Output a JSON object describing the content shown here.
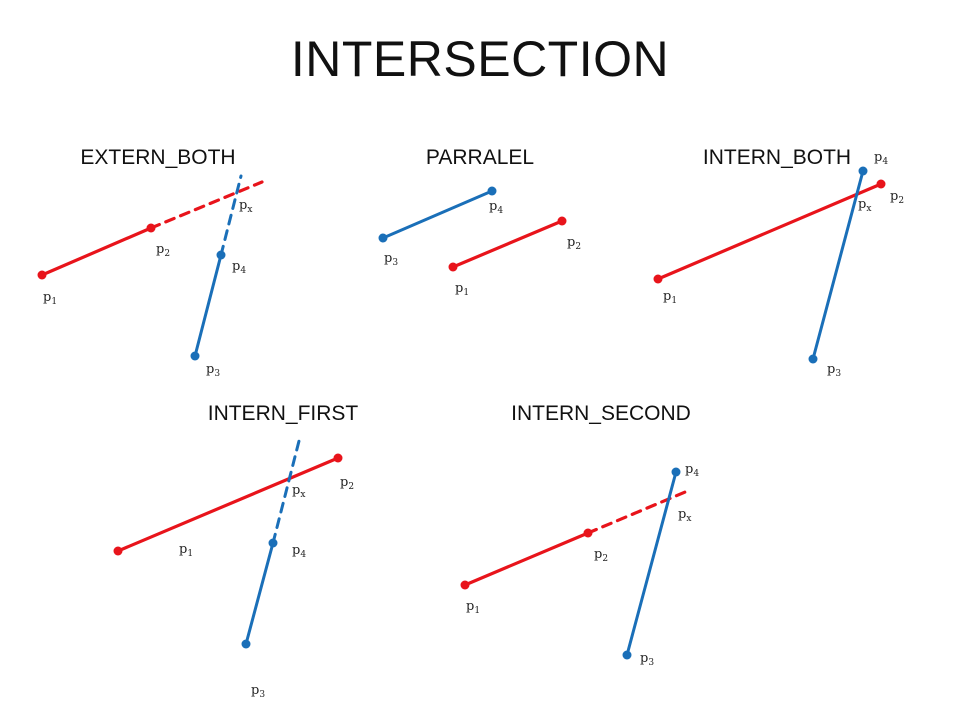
{
  "title": "INTERSECTION",
  "colors": {
    "red": "#e8141b",
    "blue": "#1a6fb8"
  },
  "panels": [
    {
      "id": "extern-both",
      "title": "EXTERN_BOTH",
      "labels": [
        {
          "base": "p",
          "sub": "1"
        },
        {
          "base": "p",
          "sub": "2"
        },
        {
          "base": "p",
          "sub": "3"
        },
        {
          "base": "p",
          "sub": "4"
        },
        {
          "base": "p",
          "sub": "x"
        }
      ]
    },
    {
      "id": "parralel",
      "title": "PARRALEL",
      "labels": [
        {
          "base": "p",
          "sub": "1"
        },
        {
          "base": "p",
          "sub": "2"
        },
        {
          "base": "p",
          "sub": "3"
        },
        {
          "base": "p",
          "sub": "4"
        }
      ]
    },
    {
      "id": "intern-both",
      "title": "INTERN_BOTH",
      "labels": [
        {
          "base": "p",
          "sub": "1"
        },
        {
          "base": "p",
          "sub": "2"
        },
        {
          "base": "p",
          "sub": "3"
        },
        {
          "base": "p",
          "sub": "4"
        },
        {
          "base": "p",
          "sub": "x"
        }
      ]
    },
    {
      "id": "intern-first",
      "title": "INTERN_FIRST",
      "labels": [
        {
          "base": "p",
          "sub": "1"
        },
        {
          "base": "p",
          "sub": "2"
        },
        {
          "base": "p",
          "sub": "3"
        },
        {
          "base": "p",
          "sub": "4"
        },
        {
          "base": "p",
          "sub": "x"
        }
      ]
    },
    {
      "id": "intern-second",
      "title": "INTERN_SECOND",
      "labels": [
        {
          "base": "p",
          "sub": "1"
        },
        {
          "base": "p",
          "sub": "2"
        },
        {
          "base": "p",
          "sub": "3"
        },
        {
          "base": "p",
          "sub": "4"
        },
        {
          "base": "p",
          "sub": "x"
        }
      ]
    }
  ]
}
